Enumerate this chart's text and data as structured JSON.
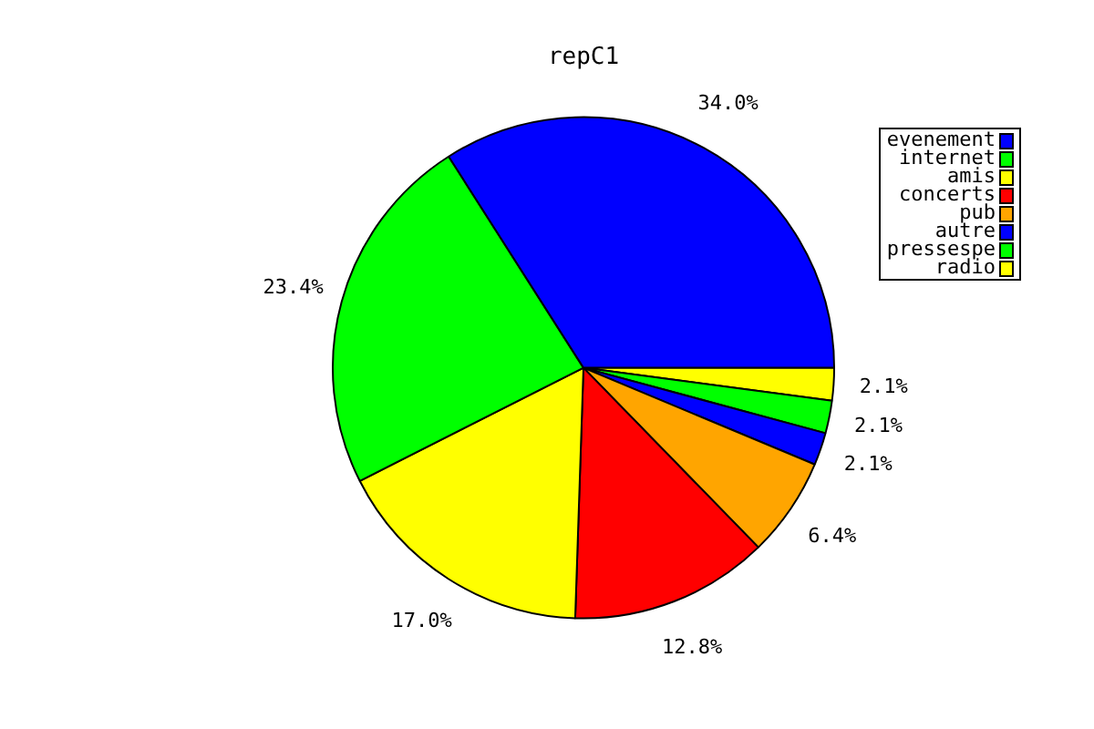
{
  "chart_data": {
    "type": "pie",
    "title": "repC1",
    "categories": [
      "evenement",
      "internet",
      "amis",
      "concerts",
      "pub",
      "autre",
      "pressespe",
      "radio"
    ],
    "values": [
      34.0,
      23.4,
      17.0,
      12.8,
      6.4,
      2.1,
      2.1,
      2.1
    ],
    "value_labels": [
      "34.0%",
      "23.4%",
      "17.0%",
      "12.8%",
      "6.4%",
      "2.1%",
      "2.1%",
      "2.1%"
    ],
    "colors": [
      "#0000ff",
      "#00ff00",
      "#ffff00",
      "#ff0000",
      "#ffa500",
      "#0000ff",
      "#00ff00",
      "#ffff00"
    ],
    "legend": "top right"
  }
}
